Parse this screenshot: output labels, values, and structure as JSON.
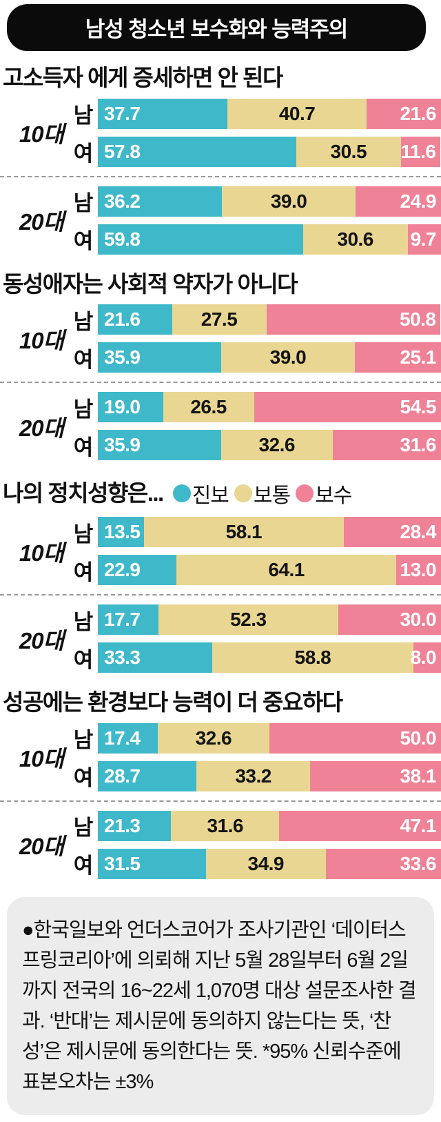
{
  "title_banner": "남성 청소년 보수화와 능력주의",
  "colors": {
    "banner_bg": "#0b0b0b",
    "progressive_teal": "#3fb9c9",
    "moderate_khaki": "#e9d693",
    "conservative_pink": "#ef8297",
    "footnote_bg": "#ececec",
    "divider_gray": "#999999"
  },
  "legend": {
    "items": [
      {
        "label": "진보",
        "color": "#3fb9c9"
      },
      {
        "label": "보통",
        "color": "#e9d693"
      },
      {
        "label": "보수",
        "color": "#ef8297"
      }
    ]
  },
  "sections": [
    {
      "title": "고소득자 에게 증세하면 안 된다",
      "show_legend": false,
      "groups": [
        {
          "age": "10대",
          "rows": [
            {
              "sex": "남",
              "values": [
                "37.7",
                "40.7",
                "21.6"
              ]
            },
            {
              "sex": "여",
              "values": [
                "57.8",
                "30.5",
                "11.6"
              ]
            }
          ]
        },
        {
          "age": "20대",
          "rows": [
            {
              "sex": "남",
              "values": [
                "36.2",
                "39.0",
                "24.9"
              ]
            },
            {
              "sex": "여",
              "values": [
                "59.8",
                "30.6",
                "9.7"
              ]
            }
          ]
        }
      ]
    },
    {
      "title": "동성애자는 사회적 약자가 아니다",
      "show_legend": false,
      "groups": [
        {
          "age": "10대",
          "rows": [
            {
              "sex": "남",
              "values": [
                "21.6",
                "27.5",
                "50.8"
              ]
            },
            {
              "sex": "여",
              "values": [
                "35.9",
                "39.0",
                "25.1"
              ]
            }
          ]
        },
        {
          "age": "20대",
          "rows": [
            {
              "sex": "남",
              "values": [
                "19.0",
                "26.5",
                "54.5"
              ]
            },
            {
              "sex": "여",
              "values": [
                "35.9",
                "32.6",
                "31.6"
              ]
            }
          ]
        }
      ]
    },
    {
      "title": "나의 정치성향은...",
      "show_legend": true,
      "groups": [
        {
          "age": "10대",
          "rows": [
            {
              "sex": "남",
              "values": [
                "13.5",
                "58.1",
                "28.4"
              ]
            },
            {
              "sex": "여",
              "values": [
                "22.9",
                "64.1",
                "13.0"
              ]
            }
          ]
        },
        {
          "age": "20대",
          "rows": [
            {
              "sex": "남",
              "values": [
                "17.7",
                "52.3",
                "30.0"
              ]
            },
            {
              "sex": "여",
              "values": [
                "33.3",
                "58.8",
                "8.0"
              ]
            }
          ]
        }
      ]
    },
    {
      "title": "성공에는 환경보다 능력이 더 중요하다",
      "show_legend": false,
      "groups": [
        {
          "age": "10대",
          "rows": [
            {
              "sex": "남",
              "values": [
                "17.4",
                "32.6",
                "50.0"
              ]
            },
            {
              "sex": "여",
              "values": [
                "28.7",
                "33.2",
                "38.1"
              ]
            }
          ]
        },
        {
          "age": "20대",
          "rows": [
            {
              "sex": "남",
              "values": [
                "21.3",
                "31.6",
                "47.1"
              ]
            },
            {
              "sex": "여",
              "values": [
                "31.5",
                "34.9",
                "33.6"
              ]
            }
          ]
        }
      ]
    }
  ],
  "footnote": "●한국일보와 언더스코어가 조사기관인 ‘데이터스프링코리아’에 의뢰해 지난 5월 28일부터 6월 2일까지 전국의 16~22세 1,070명 대상 설문조사한 결과. ‘반대’는 제시문에 동의하지 않는다는 뜻, ‘찬성’은 제시문에 동의한다는 뜻. *95% 신뢰수준에 표본오차는 ±3%",
  "chart_data": [
    {
      "type": "bar",
      "stacked": true,
      "unit": "%",
      "xlim": [
        0,
        100
      ],
      "title": "고소득자 에게 증세하면 안 된다",
      "categories": [
        "10대 남",
        "10대 여",
        "20대 남",
        "20대 여"
      ],
      "series": [
        {
          "name": "반대",
          "color": "#3fb9c9",
          "values": [
            37.7,
            57.8,
            36.2,
            59.8
          ]
        },
        {
          "name": "보통",
          "color": "#e9d693",
          "values": [
            40.7,
            30.5,
            39.0,
            30.6
          ]
        },
        {
          "name": "찬성",
          "color": "#ef8297",
          "values": [
            21.6,
            11.6,
            24.9,
            9.7
          ]
        }
      ]
    },
    {
      "type": "bar",
      "stacked": true,
      "unit": "%",
      "xlim": [
        0,
        100
      ],
      "title": "동성애자는 사회적 약자가 아니다",
      "categories": [
        "10대 남",
        "10대 여",
        "20대 남",
        "20대 여"
      ],
      "series": [
        {
          "name": "반대",
          "color": "#3fb9c9",
          "values": [
            21.6,
            35.9,
            19.0,
            35.9
          ]
        },
        {
          "name": "보통",
          "color": "#e9d693",
          "values": [
            27.5,
            39.0,
            26.5,
            32.6
          ]
        },
        {
          "name": "찬성",
          "color": "#ef8297",
          "values": [
            50.8,
            25.1,
            54.5,
            31.6
          ]
        }
      ]
    },
    {
      "type": "bar",
      "stacked": true,
      "unit": "%",
      "xlim": [
        0,
        100
      ],
      "title": "나의 정치성향은...",
      "legend_position": "inline-right-of-title",
      "categories": [
        "10대 남",
        "10대 여",
        "20대 남",
        "20대 여"
      ],
      "series": [
        {
          "name": "진보",
          "color": "#3fb9c9",
          "values": [
            13.5,
            22.9,
            17.7,
            33.3
          ]
        },
        {
          "name": "보통",
          "color": "#e9d693",
          "values": [
            58.1,
            64.1,
            52.3,
            58.8
          ]
        },
        {
          "name": "보수",
          "color": "#ef8297",
          "values": [
            28.4,
            13.0,
            30.0,
            8.0
          ]
        }
      ]
    },
    {
      "type": "bar",
      "stacked": true,
      "unit": "%",
      "xlim": [
        0,
        100
      ],
      "title": "성공에는 환경보다 능력이 더 중요하다",
      "categories": [
        "10대 남",
        "10대 여",
        "20대 남",
        "20대 여"
      ],
      "series": [
        {
          "name": "반대",
          "color": "#3fb9c9",
          "values": [
            17.4,
            28.7,
            21.3,
            31.5
          ]
        },
        {
          "name": "보통",
          "color": "#e9d693",
          "values": [
            32.6,
            33.2,
            31.6,
            34.9
          ]
        },
        {
          "name": "찬성",
          "color": "#ef8297",
          "values": [
            50.0,
            38.1,
            47.1,
            33.6
          ]
        }
      ]
    }
  ]
}
